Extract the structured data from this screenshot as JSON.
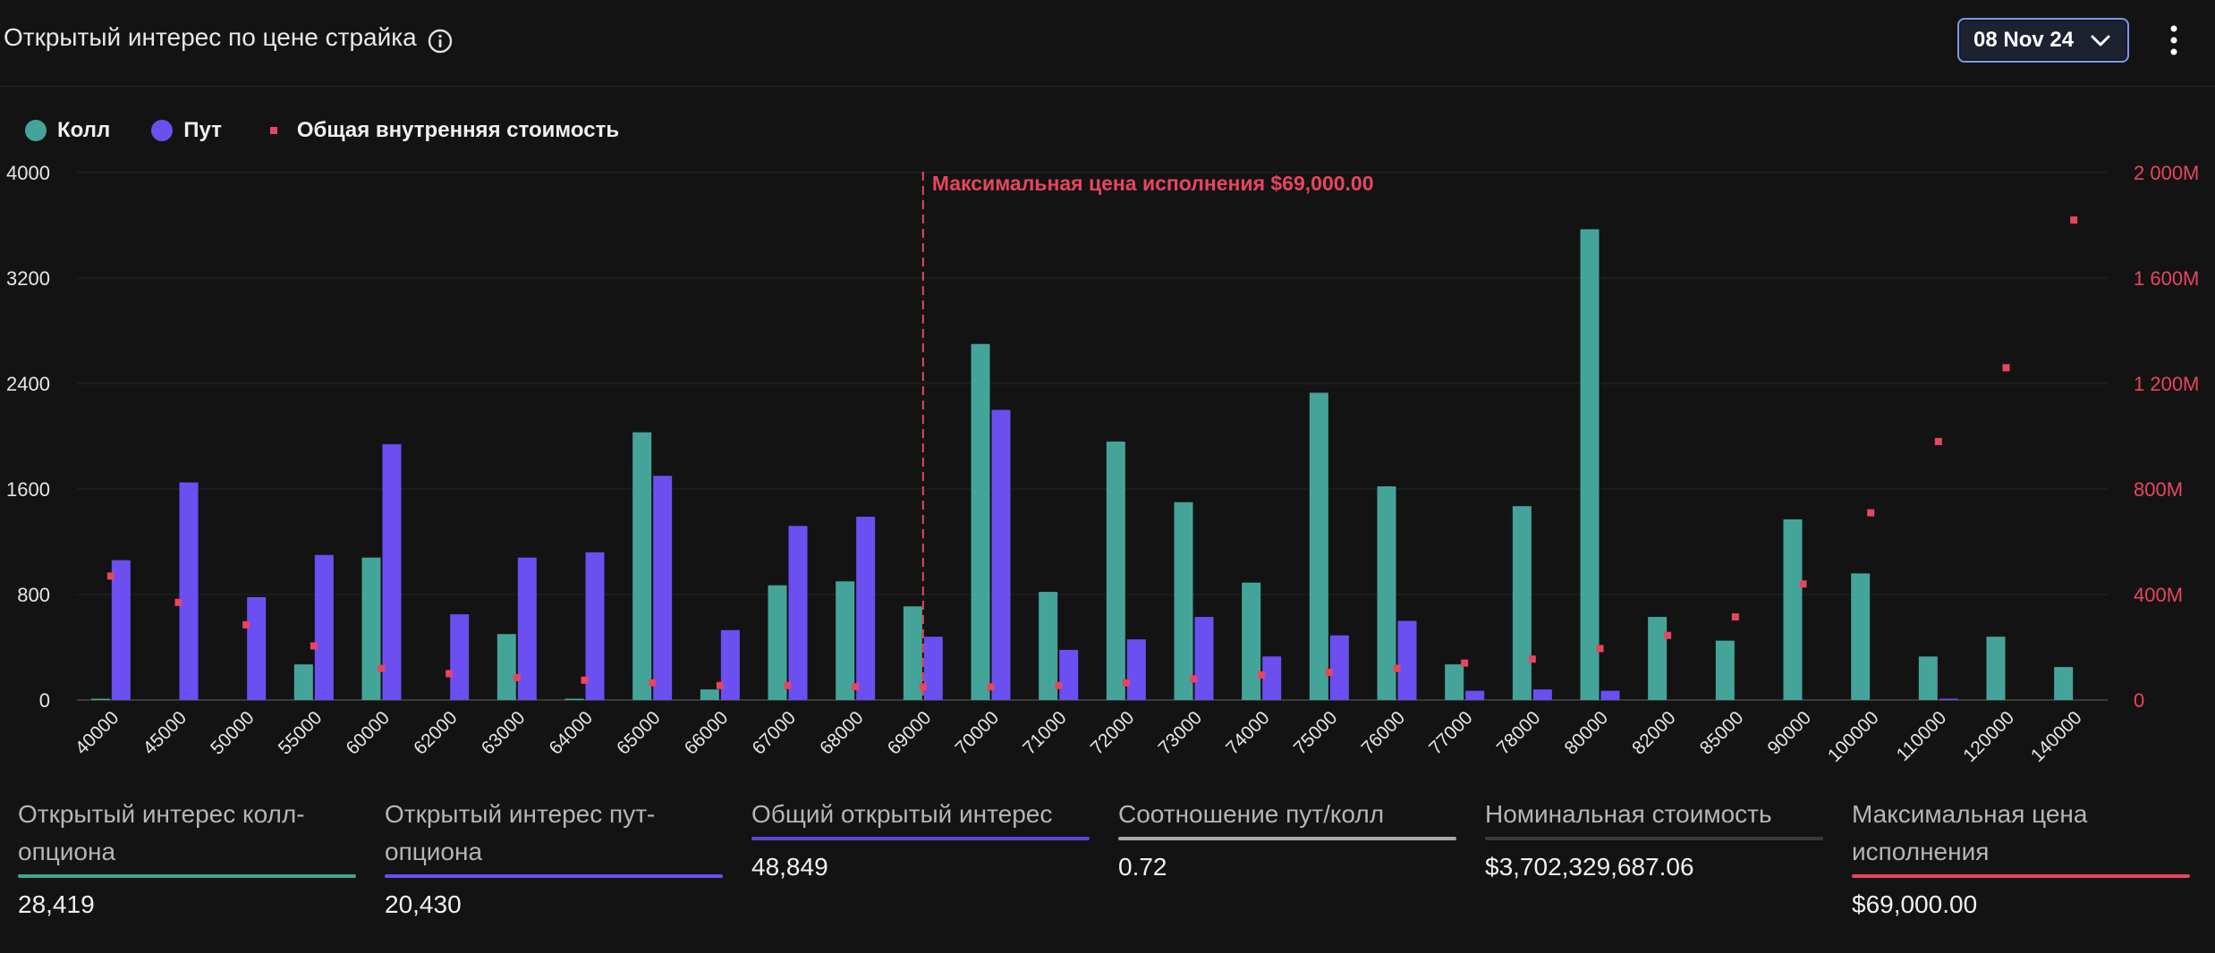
{
  "header": {
    "title": "Открытый интерес по цене страйка",
    "date_select": "08 Nov 24"
  },
  "legend": {
    "call": "Колл",
    "put": "Пут",
    "intrinsic": "Общая внутренняя стоимость"
  },
  "colors": {
    "call": "#45a49a",
    "put": "#6b4ff0",
    "intrinsic": "#e8455e",
    "total": "#5b47d8",
    "ratio": "#a8a8a8",
    "notional": "#3a3a3a"
  },
  "chart_data": {
    "type": "bar",
    "categories": [
      "40000",
      "45000",
      "50000",
      "55000",
      "60000",
      "62000",
      "63000",
      "64000",
      "65000",
      "66000",
      "67000",
      "68000",
      "69000",
      "70000",
      "71000",
      "72000",
      "73000",
      "74000",
      "75000",
      "76000",
      "77000",
      "78000",
      "80000",
      "82000",
      "85000",
      "90000",
      "100000",
      "110000",
      "120000",
      "140000"
    ],
    "series": [
      {
        "name": "Колл",
        "axis": "left",
        "values": [
          10,
          0,
          0,
          270,
          1080,
          0,
          500,
          10,
          2030,
          80,
          870,
          900,
          710,
          2700,
          820,
          1960,
          1500,
          890,
          2330,
          1620,
          270,
          1470,
          3570,
          630,
          450,
          1370,
          960,
          330,
          480,
          250
        ]
      },
      {
        "name": "Пут",
        "axis": "left",
        "values": [
          1060,
          1650,
          780,
          1100,
          1940,
          650,
          1080,
          1120,
          1700,
          530,
          1320,
          1390,
          480,
          2200,
          380,
          460,
          630,
          330,
          490,
          600,
          70,
          80,
          70,
          0,
          0,
          0,
          0,
          10,
          0,
          0
        ]
      },
      {
        "name": "Общая внутренняя стоимость",
        "axis": "right",
        "type": "scatter",
        "values": [
          470,
          370,
          285,
          205,
          120,
          100,
          85,
          75,
          65,
          55,
          55,
          50,
          50,
          50,
          55,
          65,
          80,
          95,
          105,
          120,
          140,
          155,
          195,
          245,
          315,
          440,
          710,
          980,
          1260,
          1820
        ]
      }
    ],
    "ylim": [
      0,
      4000
    ],
    "yticks": [
      "0",
      "800",
      "1600",
      "2400",
      "3200",
      "4000"
    ],
    "y2lim": [
      0,
      2000
    ],
    "y2ticks": [
      "0",
      "400M",
      "800M",
      "1 200M",
      "1 600M",
      "2 000M"
    ],
    "annotation": {
      "category": "69000",
      "label": "Максимальная цена исполнения $69,000.00"
    },
    "grid": true,
    "legend_position": "top-left"
  },
  "stats": [
    {
      "label": "Открытый интерес колл-опциона",
      "value": "28,419",
      "color": "#45a49a"
    },
    {
      "label": "Открытый интерес пут-опциона",
      "value": "20,430",
      "color": "#6b4ff0"
    },
    {
      "label": "Общий открытый интерес",
      "value": "48,849",
      "color": "#5b47d8"
    },
    {
      "label": "Соотношение пут/колл",
      "value": "0.72",
      "color": "#a8a8a8"
    },
    {
      "label": "Номинальная стоимость",
      "value": "$3,702,329,687.06",
      "color": "#3a3a3a"
    },
    {
      "label": "Максимальная цена исполнения",
      "value": "$69,000.00",
      "color": "#e8455e"
    }
  ]
}
